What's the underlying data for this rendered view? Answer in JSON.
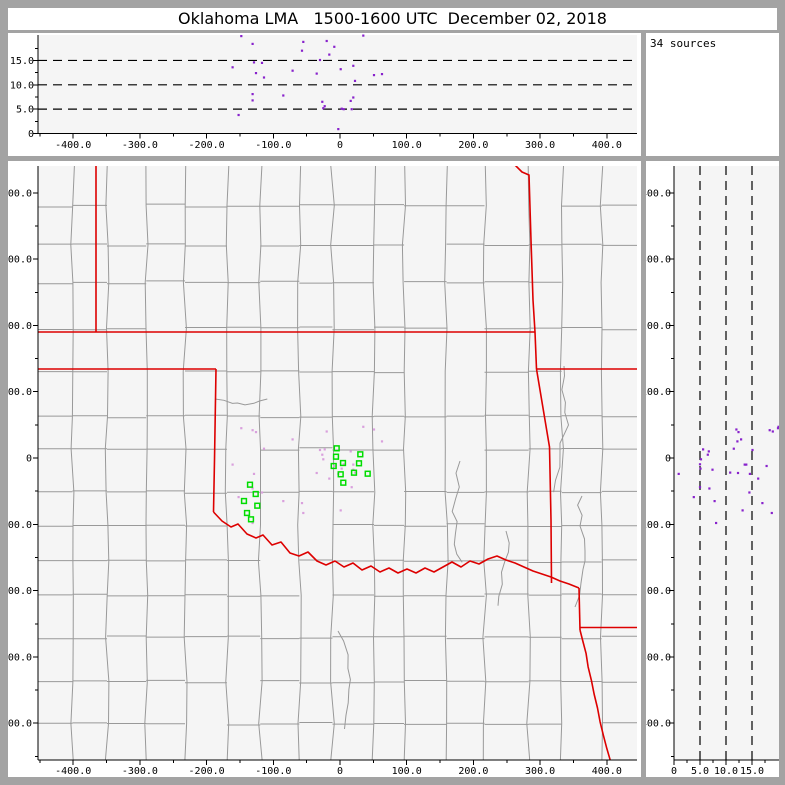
{
  "window": {
    "title": "Oklahoma LMA   1500-1600 UTC  December 02, 2018"
  },
  "chart_data": {
    "type": "scatter",
    "layout": "xlma-three-panel",
    "title": "Oklahoma LMA   1500-1600 UTC  December 02, 2018",
    "annotation": "34 sources",
    "axis_ticks": {
      "km_values": [
        -400,
        -300,
        -200,
        -100,
        0,
        100,
        200,
        300,
        400
      ],
      "km_labels": [
        "-400.0",
        "-300.0",
        "-200.0",
        "-100.0",
        "0",
        "100.0",
        "200.0",
        "300.0",
        "400.0"
      ],
      "km_minor_step": 50,
      "alt_values": [
        0,
        5,
        10,
        15
      ],
      "alt_labels": [
        "0",
        "5.0",
        "10.0",
        "15.0"
      ],
      "alt_minor_step": 2.5
    },
    "panels": {
      "alt_vs_ew": {
        "xlim": [
          -452.8,
          445.3
        ],
        "ylim": [
          0,
          20.2
        ],
        "dashed_alt": [
          5,
          10,
          15
        ],
        "grid": "dashed"
      },
      "plan_view": {
        "xlim": [
          -452.8,
          445.3
        ],
        "ylim": [
          -455.5,
          440.4
        ],
        "grid": "map"
      },
      "alt_vs_ns": {
        "xlim": [
          0,
          20.2
        ],
        "ylim": [
          -455.5,
          440.4
        ],
        "dashed_alt": [
          5,
          10,
          15
        ],
        "grid": "dashed"
      }
    },
    "sources_ew_ns_alt": [
      [
        -148,
        45,
        20.0
      ],
      [
        35,
        47,
        20.1
      ],
      [
        -131,
        42,
        18.4
      ],
      [
        -55,
        -83,
        18.8
      ],
      [
        -20,
        40,
        19.0
      ],
      [
        -57,
        -68,
        17.0
      ],
      [
        -8.5,
        -12,
        17.8
      ],
      [
        -129,
        -24,
        14.6
      ],
      [
        -117,
        -52,
        14.5
      ],
      [
        -161,
        -10,
        13.6
      ],
      [
        -126,
        39,
        12.4
      ],
      [
        -71,
        28,
        12.9
      ],
      [
        -35,
        -22.6,
        12.3
      ],
      [
        -114,
        14,
        11.5
      ],
      [
        -131,
        -98,
        8.1
      ],
      [
        -85,
        -65,
        7.8
      ],
      [
        -131,
        -46,
        6.8
      ],
      [
        -152,
        -59,
        3.8
      ],
      [
        -16,
        -31,
        16.2
      ],
      [
        -30,
        12,
        15.1
      ],
      [
        20,
        -10,
        13.9
      ],
      [
        1,
        -79,
        13.2
      ],
      [
        22.5,
        -22,
        10.8
      ],
      [
        51,
        43,
        12.0
      ],
      [
        63,
        25,
        12.2
      ],
      [
        -26.5,
        5,
        6.5
      ],
      [
        -23,
        13,
        5.6
      ],
      [
        -25,
        -2,
        5.2
      ],
      [
        20,
        -17.7,
        7.4
      ],
      [
        16,
        10,
        6.7
      ],
      [
        2.5,
        -16,
        5.1
      ],
      [
        5.5,
        -9.5,
        5.0
      ],
      [
        17.5,
        -44,
        5.0
      ],
      [
        -2.5,
        -24,
        0.9
      ]
    ],
    "stations_ew_ns": [
      [
        -4.9,
        14.6
      ],
      [
        -6.0,
        2.0
      ],
      [
        4.5,
        -7.5
      ],
      [
        -9.4,
        -12.1
      ],
      [
        30.4,
        5.6
      ],
      [
        28.5,
        -8.0
      ],
      [
        1.0,
        -24.6
      ],
      [
        21.0,
        -22.2
      ],
      [
        41.5,
        -23.7
      ],
      [
        4.9,
        -37.3
      ],
      [
        -134.9,
        -40.3
      ],
      [
        -126.4,
        -54.3
      ],
      [
        -143.9,
        -64.9
      ],
      [
        -124.0,
        -71.9
      ],
      [
        -139.4,
        -83.0
      ],
      [
        -133.4,
        -92.5
      ]
    ],
    "state_borders_km": [
      [
        [
          -365.8,
          440.4
        ],
        [
          -365.8,
          190.0
        ]
      ],
      [
        [
          -452.8,
          190.0
        ],
        [
          292.4,
          190.0
        ]
      ],
      [
        [
          254.9,
          447.9
        ],
        [
          263.9,
          440.4
        ],
        [
          272.9,
          431.4
        ],
        [
          283.4,
          426.8
        ],
        [
          286.4,
          328.8
        ],
        [
          289.4,
          238.3
        ],
        [
          292.4,
          190.0
        ]
      ],
      [
        [
          292.4,
          190.0
        ],
        [
          294.6,
          134.2
        ]
      ],
      [
        [
          294.6,
          134.2
        ],
        [
          449.8,
          134.2
        ]
      ],
      [
        [
          294.6,
          134.2
        ],
        [
          314.1,
          16.6
        ],
        [
          316.3,
          -93.5
        ],
        [
          317.1,
          -188.5
        ]
      ],
      [
        [
          -452.8,
          134.2
        ],
        [
          -185.9,
          134.2
        ]
      ],
      [
        [
          -185.9,
          134.2
        ],
        [
          -188.2,
          -3.0
        ],
        [
          -189.7,
          -81.4
        ]
      ],
      [
        [
          -189.7,
          -81.4
        ],
        [
          -176.9,
          -95.0
        ],
        [
          -163.4,
          -104.1
        ],
        [
          -152.9,
          -99.5
        ],
        [
          -139.4,
          -114.6
        ],
        [
          -125.9,
          -120.7
        ],
        [
          -115.4,
          -116.1
        ],
        [
          -101.9,
          -131.2
        ],
        [
          -88.5,
          -126.7
        ],
        [
          -75.0,
          -143.3
        ],
        [
          -61.5,
          -147.8
        ],
        [
          -48.0,
          -141.8
        ],
        [
          -34.5,
          -155.4
        ],
        [
          -21.0,
          -161.4
        ],
        [
          -7.5,
          -155.4
        ],
        [
          6.0,
          -164.4
        ],
        [
          19.5,
          -158.4
        ],
        [
          33.0,
          -168.9
        ],
        [
          46.5,
          -162.9
        ],
        [
          60.0,
          -171.9
        ],
        [
          73.5,
          -165.9
        ],
        [
          87.0,
          -173.5
        ],
        [
          100.4,
          -167.4
        ],
        [
          113.9,
          -173.5
        ],
        [
          127.4,
          -165.9
        ],
        [
          140.9,
          -171.9
        ],
        [
          154.4,
          -164.4
        ],
        [
          167.9,
          -156.9
        ],
        [
          181.4,
          -164.4
        ],
        [
          194.9,
          -155.4
        ],
        [
          208.4,
          -159.9
        ],
        [
          221.9,
          -152.3
        ],
        [
          235.4,
          -147.8
        ],
        [
          248.9,
          -153.8
        ],
        [
          262.4,
          -158.4
        ],
        [
          275.9,
          -164.4
        ],
        [
          289.4,
          -170.4
        ],
        [
          302.8,
          -174.9
        ],
        [
          316.3,
          -179.5
        ],
        [
          329.8,
          -185.5
        ],
        [
          343.3,
          -190.0
        ],
        [
          358.3,
          -196.1
        ]
      ],
      [
        [
          358.3,
          -196.1
        ],
        [
          359.8,
          -259.4
        ]
      ],
      [
        [
          359.8,
          -255.7
        ],
        [
          449.8,
          -255.7
        ]
      ],
      [
        [
          359.8,
          -259.4
        ],
        [
          364.0,
          -276.0
        ],
        [
          369.0,
          -295.0
        ],
        [
          372.0,
          -315.0
        ],
        [
          377.0,
          -336.0
        ],
        [
          381.0,
          -356.0
        ],
        [
          386.0,
          -377.0
        ],
        [
          390.0,
          -398.0
        ],
        [
          395.0,
          -419.0
        ],
        [
          400.0,
          -438.0
        ],
        [
          405.0,
          -455.0
        ]
      ]
    ]
  },
  "colors": {
    "page_bg": "#a3a3a3",
    "panel_bg": "#ffffff",
    "plot_bg": "#f5f5f5",
    "axis": "#000000",
    "county_line": "#999999",
    "state_line": "#dd0000",
    "station": "#00dd00",
    "source_profile": "#8822cc",
    "source_plan": "#d9a0dd"
  }
}
